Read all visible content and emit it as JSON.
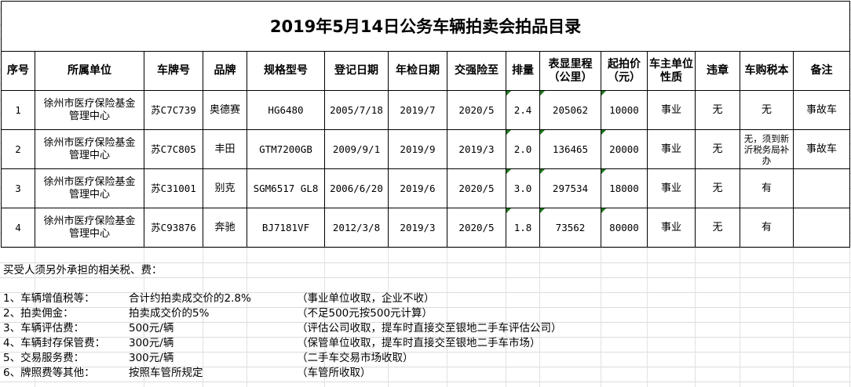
{
  "title": "2019年5月14日公务车辆拍卖会拍品目录",
  "headers": [
    "序号",
    "所属单位",
    "车牌号",
    "品牌",
    "规格型号",
    "登记日期",
    "年检日期",
    "交强险至",
    "排量",
    "表显里程（公里）",
    "起拍价（元）",
    "车主单位性质",
    "违章",
    "车购税本",
    "备注"
  ],
  "rows": [
    [
      "1",
      "徐州市医疗保险基金管理中心",
      "苏C7C739",
      "奥德赛",
      "HG6480",
      "2005/7/18",
      "2019/7",
      "2020/5",
      "2.4",
      "205062",
      "10000",
      "事业",
      "无",
      "无",
      "事故车"
    ],
    [
      "2",
      "徐州市医疗保险基金管理中心",
      "苏C7C805",
      "丰田",
      "GTM7200GB",
      "2009/9/1",
      "2019/9",
      "2019/3",
      "2.0",
      "136465",
      "20000",
      "事业",
      "无",
      "无，须到新沂税务局补办",
      "事故车"
    ],
    [
      "3",
      "徐州市医疗保险基金管理中心",
      "苏C31001",
      "别克",
      "SGM6517 GL8",
      "2006/6/20",
      "2019/6",
      "2020/5",
      "3.0",
      "297534",
      "18000",
      "事业",
      "无",
      "有",
      ""
    ],
    [
      "4",
      "徐州市医疗保险基金管理中心",
      "苏C93876",
      "奔驰",
      "BJ7181VF",
      "2012/3/8",
      "2019/3",
      "2020/5",
      "1.8",
      "73562",
      "80000",
      "事业",
      "无",
      "有",
      ""
    ]
  ],
  "notes": {
    "heading": "买受人须另外承担的相关税、费：",
    "items": [
      [
        "1、车辆增值税等：",
        "合计约拍卖成交价的2.8%",
        "（事业单位收取，企业不收）"
      ],
      [
        "2、拍卖佣金：",
        "拍卖成交价的5%",
        "（不足500元按500元计算）"
      ],
      [
        "3、车辆评估费：",
        "500元/辆",
        "（评估公司收取，提车时直接交至银地二手车评估公司）"
      ],
      [
        "4、车辆封存保管费：",
        "300元/辆",
        "（保管单位收取，提车时直接交至银地二手车市场）"
      ],
      [
        "5、交易服务费：",
        "300元/辆",
        "（二手车交易市场收取）"
      ],
      [
        "6、牌照费等其他：",
        "按照车管所规定",
        "（车管所收取）"
      ]
    ]
  },
  "colors": {
    "grid": "#dcdcdc",
    "border": "#000000",
    "comment_marker": "#1e7b1e"
  }
}
